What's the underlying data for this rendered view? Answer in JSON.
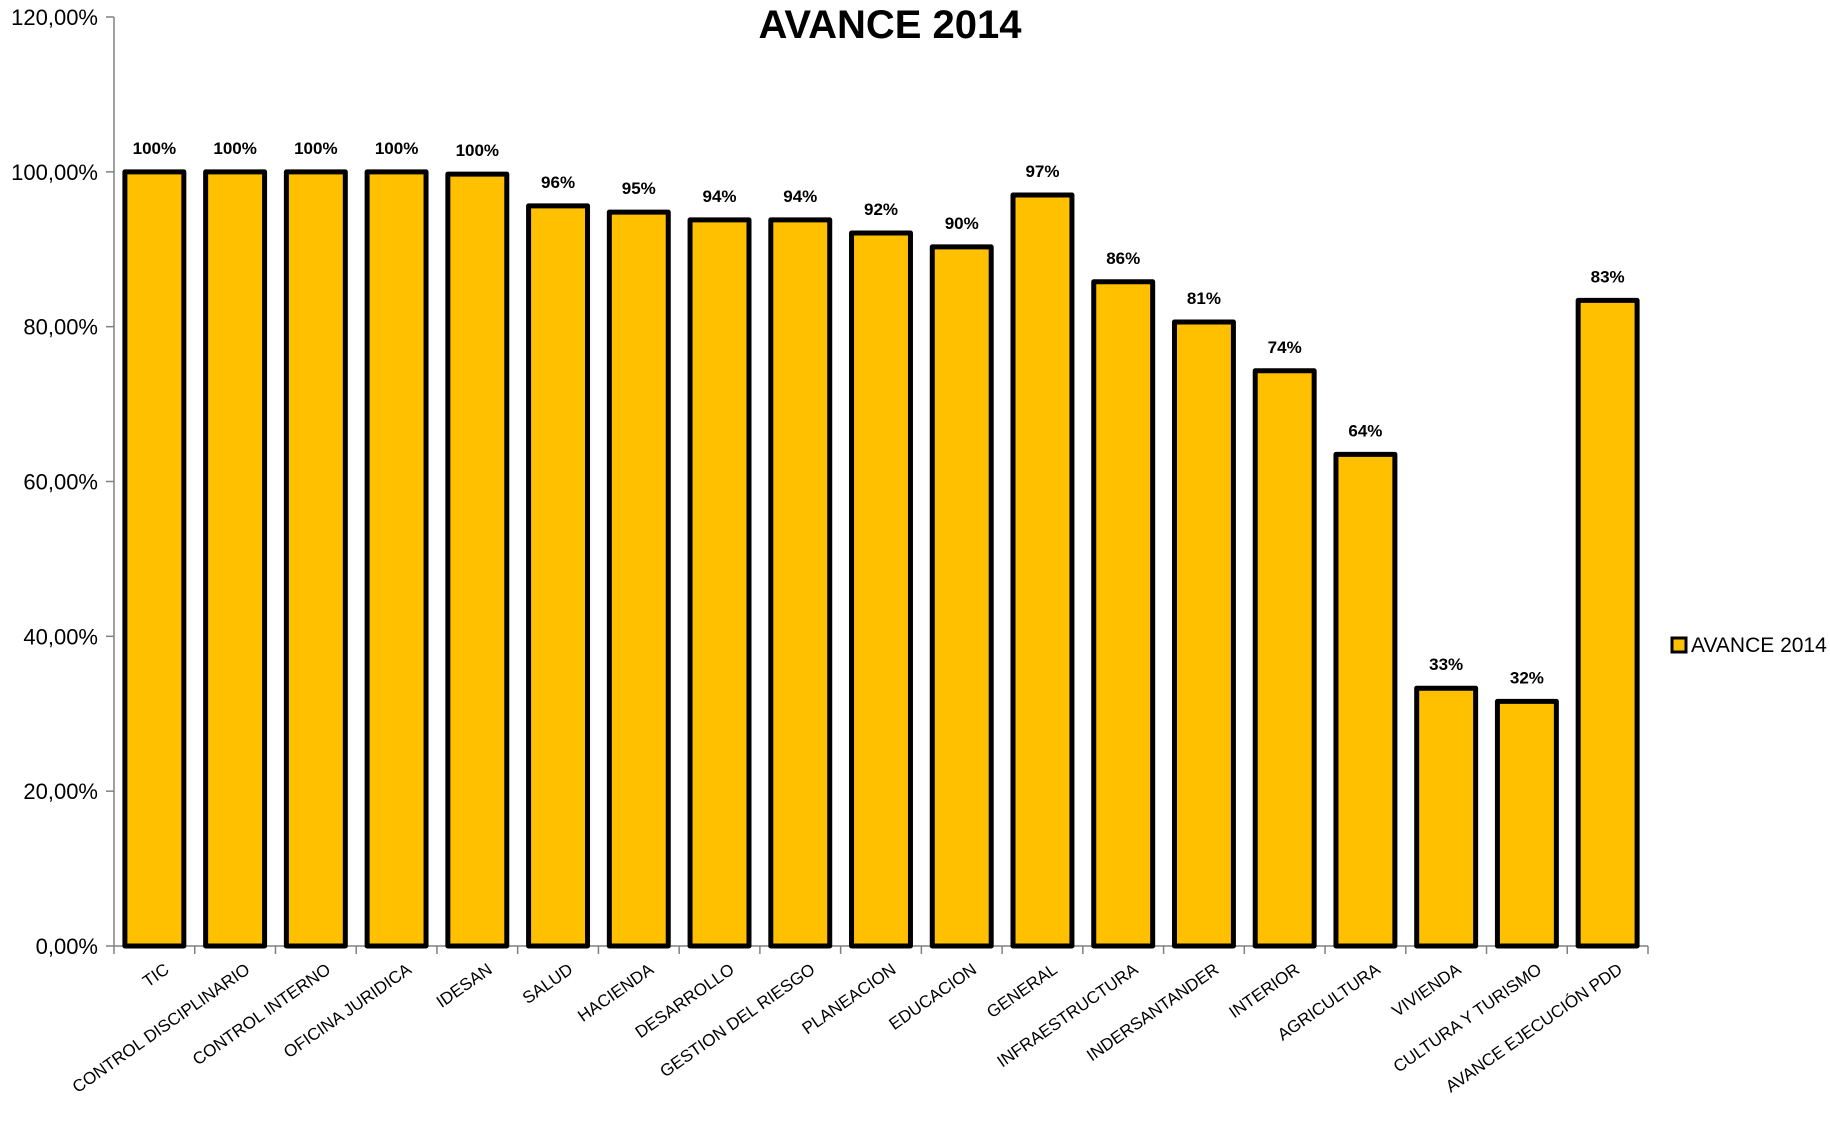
{
  "chart_data": {
    "type": "bar",
    "title": "AVANCE 2014",
    "xlabel": "",
    "ylabel": "",
    "ylim": [
      0,
      120
    ],
    "yticks": [
      "0,00%",
      "20,00%",
      "40,00%",
      "60,00%",
      "80,00%",
      "100,00%",
      "120,00%"
    ],
    "ytick_values": [
      0,
      20,
      40,
      60,
      80,
      100,
      120
    ],
    "grid": false,
    "legend_position": "right",
    "categories": [
      "TIC",
      "CONTROL DISCIPLINARIO",
      "CONTROL INTERNO",
      "OFICINA JURIDICA",
      "IDESAN",
      "SALUD",
      "HACIENDA",
      "DESARROLLO",
      "GESTION DEL RIESGO",
      "PLANEACION",
      "EDUCACION",
      "GENERAL",
      "INFRAESTRUCTURA",
      "INDERSANTANDER",
      "INTERIOR",
      "AGRICULTURA",
      "VIVIENDA",
      "CULTURA Y TURISMO",
      "AVANCE EJECUCIÓN PDD"
    ],
    "series": [
      {
        "name": "AVANCE 2014",
        "color": "#FFC000",
        "edge_color": "#000000",
        "values": [
          100,
          100,
          100,
          100,
          99.7,
          95.6,
          94.8,
          93.8,
          93.8,
          92.1,
          90.3,
          97.0,
          85.8,
          80.6,
          74.3,
          63.5,
          33.3,
          31.6,
          83.4
        ],
        "data_labels": [
          "100%",
          "100%",
          "100%",
          "100%",
          "100%",
          "96%",
          "95%",
          "94%",
          "94%",
          "92%",
          "90%",
          "97%",
          "86%",
          "81%",
          "74%",
          "64%",
          "33%",
          "32%",
          "83%"
        ]
      }
    ]
  }
}
